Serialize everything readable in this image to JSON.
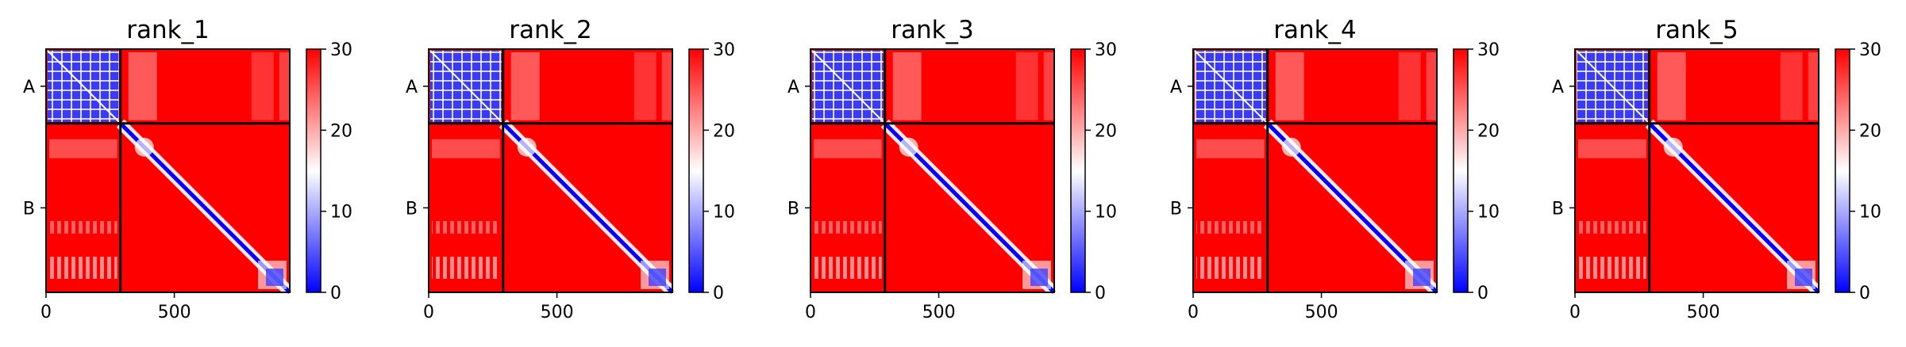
{
  "chart_data": {
    "type": "heatmap",
    "colormap": {
      "low": "#0000ff",
      "mid": "#ffffff",
      "high": "#ff0000"
    },
    "colorbar": {
      "range": [
        0,
        30
      ],
      "ticks": [
        0,
        10,
        20,
        30
      ]
    },
    "chains": [
      {
        "name": "A",
        "start": 0,
        "end": 290
      },
      {
        "name": "B",
        "start": 290,
        "end": 950
      }
    ],
    "x_ticks": [
      0,
      500
    ],
    "x_range": [
      0,
      950
    ],
    "panels": [
      {
        "title": "rank_1"
      },
      {
        "title": "rank_2"
      },
      {
        "title": "rank_3"
      },
      {
        "title": "rank_4"
      },
      {
        "title": "rank_5"
      }
    ]
  }
}
